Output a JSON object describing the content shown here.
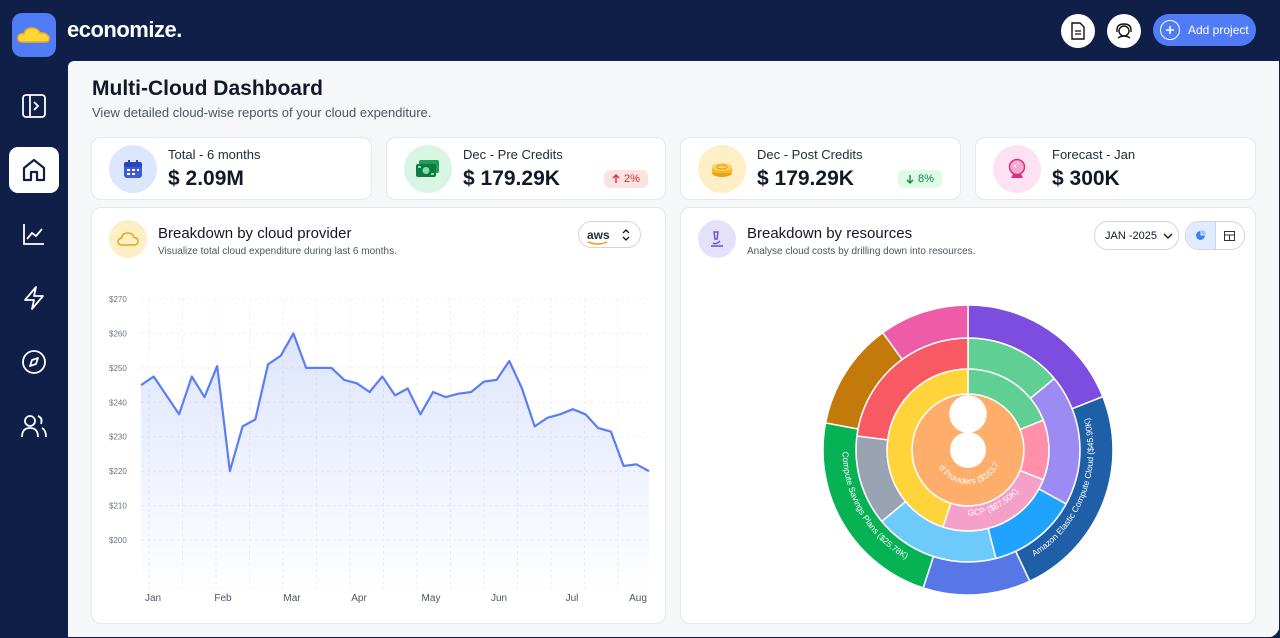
{
  "app": {
    "brand": "economize."
  },
  "header": {
    "add_project_label": "Add project"
  },
  "sidebar": {
    "items": [
      {
        "name": "collapse"
      },
      {
        "name": "home",
        "active": true
      },
      {
        "name": "analytics"
      },
      {
        "name": "lightning"
      },
      {
        "name": "explore"
      },
      {
        "name": "users"
      }
    ]
  },
  "page": {
    "title": "Multi-Cloud Dashboard",
    "subtitle": "View detailed cloud-wise reports of your cloud expenditure."
  },
  "stats": [
    {
      "label": "Total - 6 months",
      "value": "$ 2.09M",
      "icon": "calendar-icon",
      "color": "#dbe6ff"
    },
    {
      "label": "Dec - Pre Credits",
      "value": "$ 179.29K",
      "change": "2%",
      "trend": "up",
      "icon": "cash-icon",
      "color": "#d9f6e5"
    },
    {
      "label": "Dec - Post Credits",
      "value": "$ 179.29K",
      "change": "8%",
      "trend": "down",
      "icon": "coins-icon",
      "color": "#feefc7"
    },
    {
      "label": "Forecast - Jan",
      "value": "$ 300K",
      "icon": "crystal-ball-icon",
      "color": "#fde3f1"
    }
  ],
  "provider_card": {
    "title": "Breakdown by cloud provider",
    "subtitle": "Visualize total cloud expenditure during last 6 months.",
    "provider_select": "aws"
  },
  "resources_card": {
    "title": "Breakdown by resources",
    "subtitle": "Analyse cloud costs by drilling down into resources.",
    "month_select": "JAN -2025"
  },
  "chart_data": [
    {
      "type": "area",
      "title": "",
      "xlabel": "",
      "ylabel": "",
      "ylim": [
        195,
        270
      ],
      "y_ticks": [
        "$270",
        "$260",
        "$250",
        "$240",
        "$230",
        "$220",
        "$210",
        "$200"
      ],
      "x_ticks": [
        "Jan",
        "Feb",
        "Mar",
        "Apr",
        "May",
        "Jun",
        "Jul",
        "Aug"
      ],
      "color": "#5a7ff5",
      "values": [
        245,
        247.5,
        242,
        236.5,
        247.5,
        241.5,
        250.5,
        220,
        233,
        235,
        251,
        253.5,
        260,
        250,
        250,
        250,
        246.5,
        245.5,
        243,
        247.5,
        242,
        244,
        236.5,
        243,
        241.5,
        242.5,
        243,
        246,
        246.5,
        252,
        244,
        233,
        235.5,
        236.5,
        238,
        236.5,
        232.5,
        231.5,
        221.5,
        222,
        220
      ]
    },
    {
      "type": "sunburst",
      "rings": [
        [
          {
            "label": "Cloud Providers ($163.78K)",
            "value": 100,
            "color": "#ffad6b"
          }
        ],
        [
          {
            "label": "",
            "value": 19,
            "color": "#5fcf93"
          },
          {
            "label": "",
            "value": 12,
            "color": "#ff8fab"
          },
          {
            "label": "GCP ($67.50K)",
            "value": 24,
            "color": "#f5a0c8"
          },
          {
            "label": "",
            "value": 45,
            "color": "#ffd43b"
          }
        ],
        [
          {
            "label": "",
            "value": 14,
            "color": "#5fcf93"
          },
          {
            "label": "",
            "value": 19,
            "color": "#9d8bf4"
          },
          {
            "label": "",
            "value": 13,
            "color": "#1fa3ff"
          },
          {
            "label": "",
            "value": 18,
            "color": "#6fcafc"
          },
          {
            "label": "",
            "value": 13,
            "color": "#9aa3b2"
          },
          {
            "label": "",
            "value": 23,
            "color": "#f85a63"
          }
        ],
        [
          {
            "label": "",
            "value": 19,
            "color": "#7c4ddf"
          },
          {
            "label": "Amazon Elastic Compute Cloud ($45.90K)",
            "value": 24,
            "color": "#1f5fa8"
          },
          {
            "label": "",
            "value": 12,
            "color": "#5877e6"
          },
          {
            "label": "Compute Savings Plans ($25.78K)",
            "value": 23,
            "color": "#07b255"
          },
          {
            "label": "",
            "value": 12,
            "color": "#c47a0a"
          },
          {
            "label": "",
            "value": 10,
            "color": "#ee5ba7"
          }
        ]
      ]
    }
  ]
}
